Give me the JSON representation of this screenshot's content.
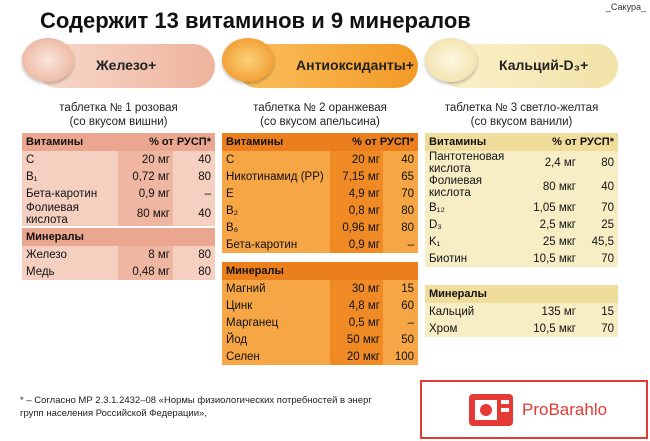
{
  "watermark": "_Сакура_",
  "title": "Содержит 13 витаминов и 9 минералов",
  "columns": [
    {
      "pill": "Железо+",
      "caption": [
        "таблетка № 1 розовая",
        "(со вкусом вишни)"
      ],
      "tables": [
        {
          "header": [
            "Витамины",
            "% от РУСП*"
          ],
          "rows": [
            [
              "С",
              "20 мг",
              "40"
            ],
            [
              "B₁",
              "0,72 мг",
              "80"
            ],
            [
              "Бета-каротин",
              "0,9 мг",
              "–"
            ],
            [
              "Фолиевая кислота",
              "80 мкг",
              "40"
            ]
          ]
        },
        {
          "header": [
            "Минералы"
          ],
          "rows": [
            [
              "Железо",
              "8 мг",
              "80"
            ],
            [
              "Медь",
              "0,48 мг",
              "80"
            ]
          ]
        }
      ]
    },
    {
      "pill": "Антиоксиданты+",
      "caption": [
        "таблетка № 2 оранжевая",
        "(со вкусом апельсина)"
      ],
      "tables": [
        {
          "header": [
            "Витамины",
            "% от РУСП*"
          ],
          "rows": [
            [
              "С",
              "20 мг",
              "40"
            ],
            [
              "Никотинамид (PP)",
              "7,15 мг",
              "65"
            ],
            [
              "Е",
              "4,9 мг",
              "70"
            ],
            [
              "B₂",
              "0,8 мг",
              "80"
            ],
            [
              "B₆",
              "0,96 мг",
              "80"
            ],
            [
              "Бета-каротин",
              "0,9 мг",
              "–"
            ]
          ]
        },
        {
          "header": [
            "Минералы"
          ],
          "rows": [
            [
              "Магний",
              "30 мг",
              "15"
            ],
            [
              "Цинк",
              "4,8 мг",
              "60"
            ],
            [
              "Марганец",
              "0,5 мг",
              "–"
            ],
            [
              "Йод",
              "50 мкг",
              "50"
            ],
            [
              "Селен",
              "20 мкг",
              "100"
            ]
          ]
        }
      ]
    },
    {
      "pill": "Кальций-D₃+",
      "caption": [
        "таблетка № 3 светло-желтая",
        "(со вкусом ванили)"
      ],
      "tables": [
        {
          "header": [
            "Витамины",
            "% от РУСП*"
          ],
          "rows": [
            [
              "Пантотеновая кислота",
              "2,4 мг",
              "80"
            ],
            [
              "Фолиевая кислота",
              "80 мкг",
              "40"
            ],
            [
              "B₁₂",
              "1,05 мкг",
              "70"
            ],
            [
              "D₃",
              "2,5 мкг",
              "25"
            ],
            [
              "K₁",
              "25 мкг",
              "45,5"
            ],
            [
              "Биотин",
              "10,5 мкг",
              "70"
            ]
          ]
        },
        {
          "header": [
            "Минералы"
          ],
          "rows": [
            [
              "Кальций",
              "135 мг",
              "15"
            ],
            [
              "Хром",
              "10,5 мкг",
              "70"
            ]
          ]
        }
      ]
    }
  ],
  "footnote": [
    "* – Согласно МР 2.3.1.2432–08 «Нормы физиологических потребностей в энерг",
    "групп населения Российской Федерации»,"
  ],
  "badge": "ProBarahlo"
}
